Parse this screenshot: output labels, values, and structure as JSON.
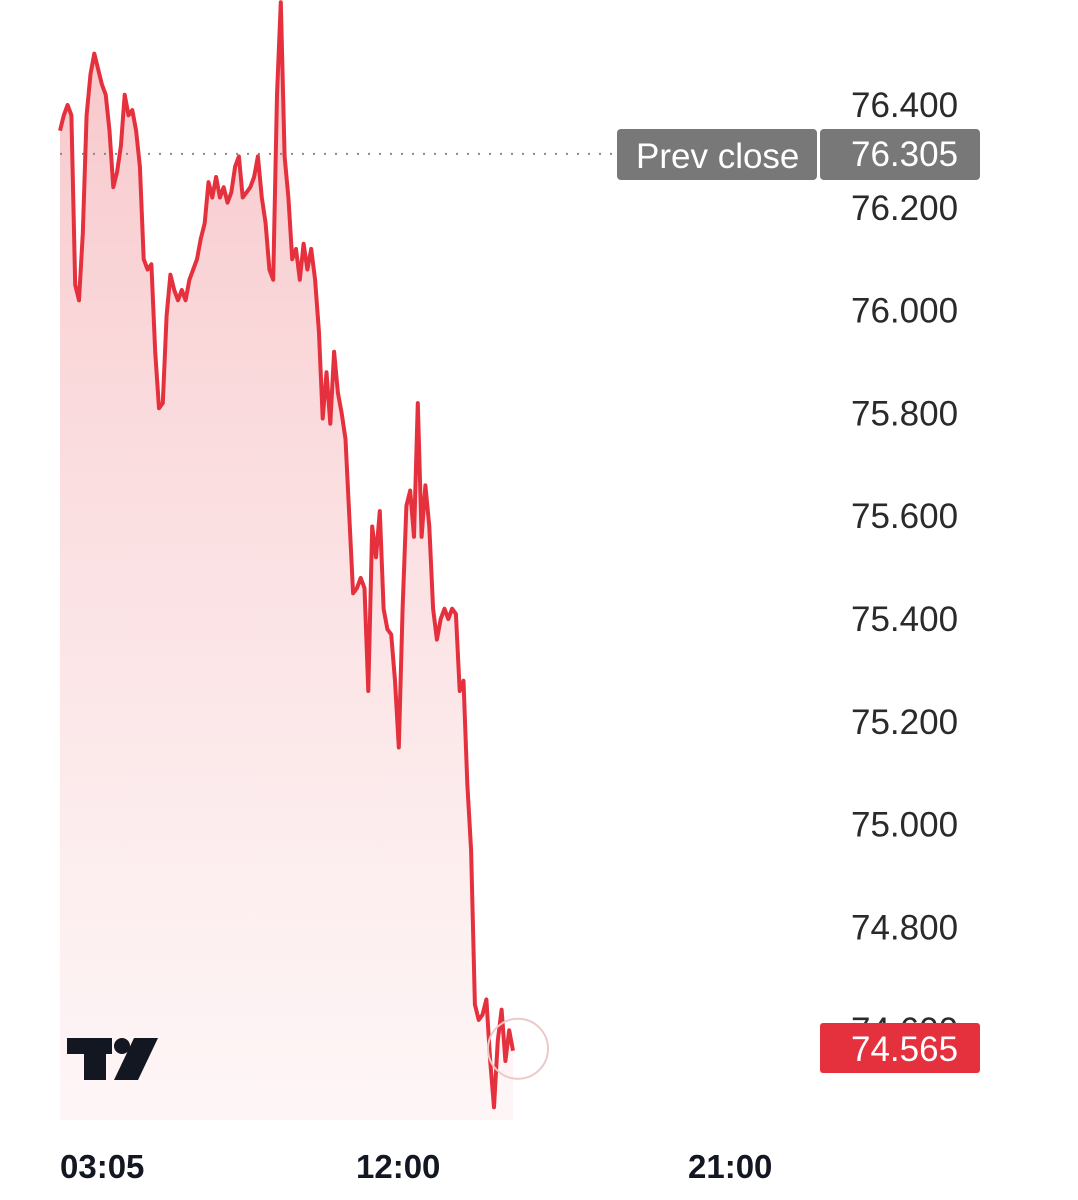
{
  "chart_data": {
    "type": "area",
    "title": "",
    "xlabel": "",
    "ylabel": "",
    "x_tick_labels": [
      "03:05",
      "12:00",
      "21:00"
    ],
    "y_tick_labels": [
      "76.400",
      "76.200",
      "76.000",
      "75.800",
      "75.600",
      "75.400",
      "75.200",
      "75.000",
      "74.800",
      "74.600"
    ],
    "ylim": [
      74.45,
      76.55
    ],
    "grid": false,
    "series": [
      {
        "values": [
          76.35,
          76.38,
          76.4,
          76.38,
          76.05,
          76.02,
          76.15,
          76.38,
          76.46,
          76.5,
          76.47,
          76.44,
          76.42,
          76.35,
          76.24,
          76.27,
          76.32,
          76.42,
          76.38,
          76.39,
          76.35,
          76.28,
          76.1,
          76.08,
          76.09,
          75.92,
          75.81,
          75.82,
          75.99,
          76.07,
          76.04,
          76.02,
          76.04,
          76.02,
          76.06,
          76.08,
          76.1,
          76.14,
          76.17,
          76.25,
          76.22,
          76.26,
          76.22,
          76.24,
          76.21,
          76.23,
          76.28,
          76.3,
          76.22,
          76.23,
          76.24,
          76.26,
          76.3,
          76.22,
          76.17,
          76.08,
          76.06,
          76.42,
          76.6,
          76.3,
          76.22,
          76.1,
          76.12,
          76.06,
          76.13,
          76.08,
          76.12,
          76.06,
          75.96,
          75.79,
          75.88,
          75.78,
          75.92,
          75.84,
          75.8,
          75.75,
          75.6,
          75.45,
          75.46,
          75.48,
          75.46,
          75.26,
          75.58,
          75.52,
          75.61,
          75.42,
          75.38,
          75.37,
          75.28,
          75.15,
          75.42,
          75.62,
          75.65,
          75.56,
          75.82,
          75.56,
          75.66,
          75.58,
          75.42,
          75.36,
          75.4,
          75.42,
          75.4,
          75.42,
          75.41,
          75.26,
          75.28,
          75.08,
          74.95,
          74.65,
          74.62,
          74.63,
          74.66,
          74.54,
          74.45,
          74.58,
          74.64,
          74.54,
          74.6,
          74.56
        ]
      }
    ],
    "prev_close": {
      "label": "Prev close",
      "value": "76.305"
    },
    "last_price": "74.565",
    "colors": {
      "line": "#e5303d",
      "badge_prev_close": "#787878",
      "badge_last": "#e5303d"
    },
    "logo_icon": "tradingview-logo-icon"
  }
}
